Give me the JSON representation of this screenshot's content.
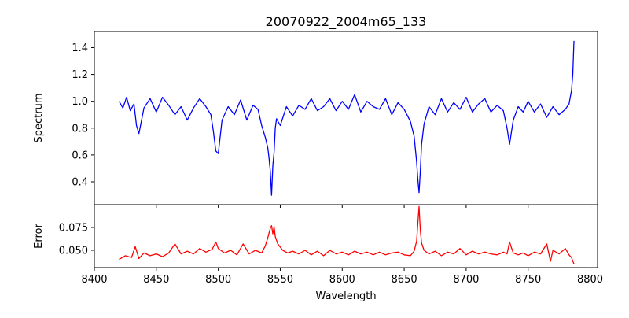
{
  "chart_data": [
    {
      "type": "line",
      "title": "20070922_2004m65_133",
      "xlabel": "",
      "ylabel": "Spectrum",
      "xlim": [
        8400,
        8806
      ],
      "ylim": [
        0.23,
        1.52
      ],
      "y_ticks": [
        0.4,
        0.6,
        0.8,
        1.0,
        1.2,
        1.4
      ],
      "y_tick_labels": [
        "0.4",
        "0.6",
        "0.8",
        "1.0",
        "1.2",
        "1.4"
      ],
      "x_tick_labels_shown": false,
      "grid": false,
      "series": [
        {
          "color": "#0000ff",
          "x": [
            8420,
            8423,
            8426,
            8429,
            8432,
            8434,
            8436,
            8440,
            8445,
            8450,
            8455,
            8460,
            8465,
            8470,
            8475,
            8480,
            8485,
            8490,
            8494,
            8496,
            8498,
            8500,
            8503,
            8508,
            8513,
            8518,
            8523,
            8528,
            8532,
            8535,
            8538,
            8540,
            8541,
            8542,
            8543,
            8544,
            8545,
            8546,
            8547,
            8550,
            8555,
            8560,
            8565,
            8570,
            8575,
            8580,
            8585,
            8590,
            8595,
            8600,
            8605,
            8610,
            8615,
            8620,
            8625,
            8630,
            8635,
            8640,
            8645,
            8650,
            8655,
            8658,
            8660,
            8661,
            8662,
            8663,
            8664,
            8666,
            8670,
            8675,
            8680,
            8685,
            8690,
            8695,
            8700,
            8705,
            8710,
            8715,
            8720,
            8725,
            8730,
            8733,
            8735,
            8738,
            8742,
            8746,
            8750,
            8755,
            8760,
            8765,
            8770,
            8775,
            8780,
            8783,
            8785,
            8786,
            8787
          ],
          "y": [
            1.0,
            0.95,
            1.03,
            0.93,
            0.98,
            0.82,
            0.76,
            0.95,
            1.02,
            0.92,
            1.03,
            0.97,
            0.9,
            0.96,
            0.86,
            0.95,
            1.02,
            0.96,
            0.9,
            0.78,
            0.63,
            0.61,
            0.86,
            0.96,
            0.9,
            1.01,
            0.86,
            0.97,
            0.94,
            0.82,
            0.73,
            0.65,
            0.57,
            0.48,
            0.3,
            0.52,
            0.62,
            0.8,
            0.87,
            0.82,
            0.96,
            0.89,
            0.97,
            0.94,
            1.02,
            0.93,
            0.96,
            1.02,
            0.93,
            1.0,
            0.94,
            1.05,
            0.92,
            1.0,
            0.96,
            0.94,
            1.02,
            0.9,
            0.99,
            0.94,
            0.85,
            0.74,
            0.55,
            0.42,
            0.32,
            0.48,
            0.68,
            0.83,
            0.96,
            0.9,
            1.02,
            0.92,
            0.99,
            0.94,
            1.03,
            0.92,
            0.98,
            1.02,
            0.92,
            0.97,
            0.93,
            0.8,
            0.68,
            0.86,
            0.96,
            0.92,
            1.0,
            0.92,
            0.98,
            0.88,
            0.96,
            0.9,
            0.94,
            0.98,
            1.08,
            1.2,
            1.45
          ]
        }
      ]
    },
    {
      "type": "line",
      "xlabel": "Wavelength",
      "ylabel": "Error",
      "xlim": [
        8400,
        8806
      ],
      "ylim": [
        0.031,
        0.1
      ],
      "x_ticks": [
        8400,
        8450,
        8500,
        8550,
        8600,
        8650,
        8700,
        8750,
        8800
      ],
      "x_tick_labels": [
        "8400",
        "8450",
        "8500",
        "8550",
        "8600",
        "8650",
        "8700",
        "8750",
        "8800"
      ],
      "y_ticks": [
        0.05,
        0.075
      ],
      "y_tick_labels": [
        "0.050",
        "0.075"
      ],
      "grid": false,
      "series": [
        {
          "color": "#ff0000",
          "x": [
            8420,
            8425,
            8430,
            8433,
            8436,
            8440,
            8445,
            8450,
            8455,
            8460,
            8465,
            8470,
            8475,
            8480,
            8485,
            8490,
            8495,
            8498,
            8500,
            8505,
            8510,
            8515,
            8520,
            8525,
            8530,
            8535,
            8538,
            8540,
            8542,
            8543,
            8544,
            8545,
            8546,
            8548,
            8552,
            8556,
            8560,
            8565,
            8570,
            8575,
            8580,
            8585,
            8590,
            8595,
            8600,
            8605,
            8610,
            8615,
            8620,
            8625,
            8630,
            8635,
            8640,
            8645,
            8650,
            8655,
            8658,
            8660,
            8661,
            8662,
            8663,
            8664,
            8666,
            8670,
            8675,
            8680,
            8685,
            8690,
            8695,
            8700,
            8705,
            8710,
            8715,
            8720,
            8725,
            8730,
            8733,
            8735,
            8738,
            8742,
            8746,
            8750,
            8755,
            8760,
            8765,
            8768,
            8770,
            8775,
            8780,
            8783,
            8785,
            8787
          ],
          "y": [
            0.04,
            0.044,
            0.042,
            0.054,
            0.041,
            0.047,
            0.044,
            0.046,
            0.043,
            0.047,
            0.057,
            0.046,
            0.049,
            0.046,
            0.052,
            0.048,
            0.051,
            0.059,
            0.052,
            0.047,
            0.05,
            0.045,
            0.057,
            0.046,
            0.05,
            0.047,
            0.055,
            0.064,
            0.074,
            0.077,
            0.068,
            0.076,
            0.065,
            0.057,
            0.05,
            0.047,
            0.049,
            0.046,
            0.05,
            0.045,
            0.049,
            0.044,
            0.05,
            0.046,
            0.048,
            0.045,
            0.049,
            0.046,
            0.048,
            0.045,
            0.048,
            0.045,
            0.047,
            0.048,
            0.045,
            0.044,
            0.049,
            0.06,
            0.079,
            0.098,
            0.072,
            0.058,
            0.05,
            0.046,
            0.049,
            0.044,
            0.048,
            0.046,
            0.052,
            0.045,
            0.049,
            0.046,
            0.048,
            0.046,
            0.045,
            0.048,
            0.046,
            0.059,
            0.047,
            0.045,
            0.047,
            0.044,
            0.048,
            0.046,
            0.057,
            0.038,
            0.05,
            0.046,
            0.052,
            0.045,
            0.042,
            0.035
          ]
        }
      ]
    }
  ]
}
